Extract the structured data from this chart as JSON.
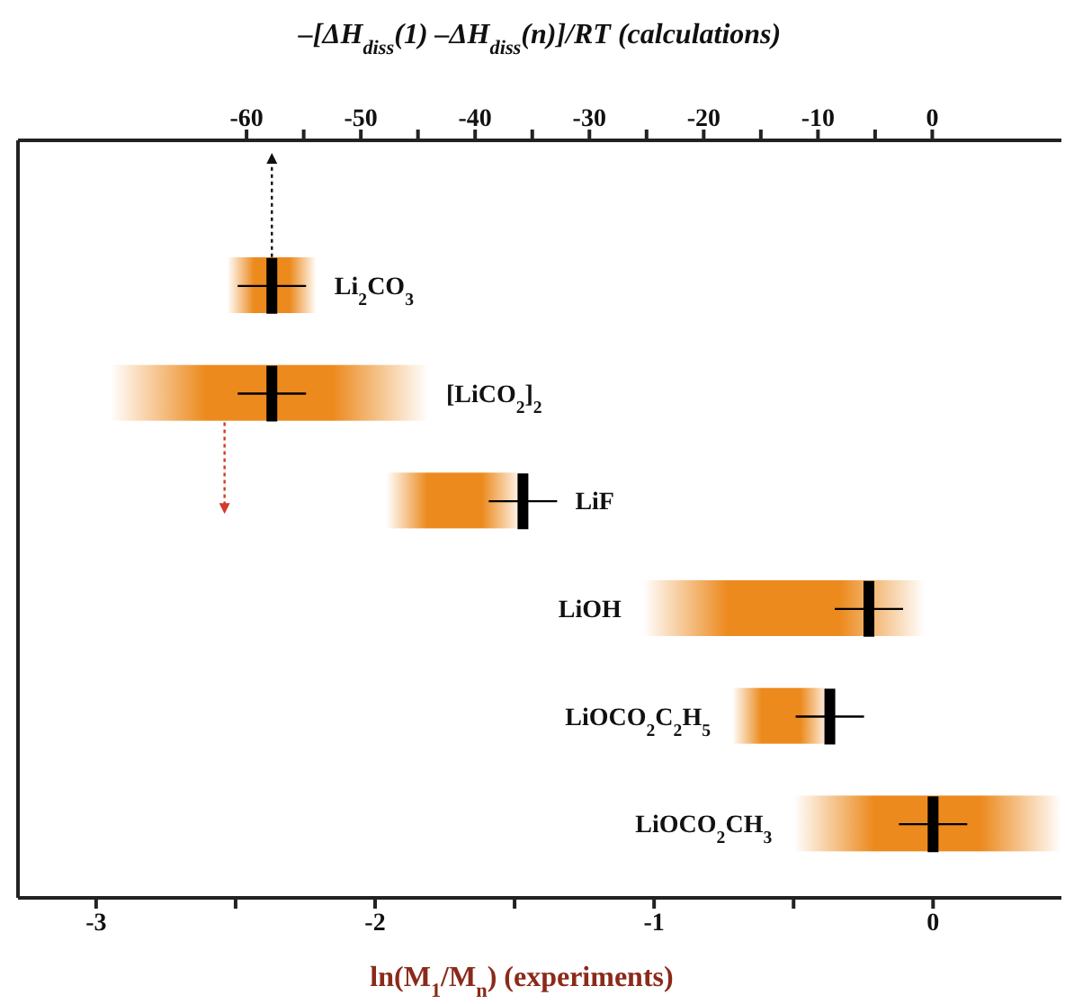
{
  "chart_data": {
    "type": "bar",
    "orientation": "horizontal",
    "categories": [
      "Li$_{2}$CO$_{3}$",
      "[LiCO$_{2}$]$_{2}$",
      "LiF",
      "LiOH",
      "LiOCO$_{2}$C$_{2}$H$_{5}$",
      "LiOCO$_{2}$CH$_{3}$"
    ],
    "xlabel": "ln(M$_{1}$/M$_{n}$) (experiments)",
    "x2label": "–[ΔH$_{diss}$(1) –ΔH$_{diss}$(n)]/RT (calculations)",
    "xlim": [
      -3.28,
      0.46
    ],
    "xticks": [
      -3,
      {
        "value": -2.5,
        "label": null
      },
      -2,
      {
        "value": -1.5,
        "label": null
      },
      -1,
      {
        "value": -0.5,
        "label": null
      },
      0
    ],
    "x2lim": [
      -80,
      11.3
    ],
    "x2ticks": [
      -60,
      {
        "value": -55,
        "label": null
      },
      -50,
      {
        "value": -45,
        "label": null
      },
      -40,
      {
        "value": -35,
        "label": null
      },
      -30,
      {
        "value": -25,
        "label": null
      },
      -20,
      {
        "value": -15,
        "label": null
      },
      -10,
      {
        "value": -5,
        "label": null
      },
      0
    ],
    "tick_labels": "x",
    "series": [
      {
        "type": "bar",
        "color": "#ec8a1e",
        "base": [
          -2.53,
          -2.95,
          -1.96,
          -1.04,
          -0.72,
          -0.5
        ],
        "values": [
          0.32,
          1.14,
          0.49,
          1.01,
          0.35,
          0.96
        ]
      },
      {
        "type": "scatter",
        "color": "#000000",
        "marker": "cross",
        "values": [
          -2.37,
          -2.37,
          -1.47,
          -0.23,
          -0.37,
          0
        ]
      }
    ]
  }
}
